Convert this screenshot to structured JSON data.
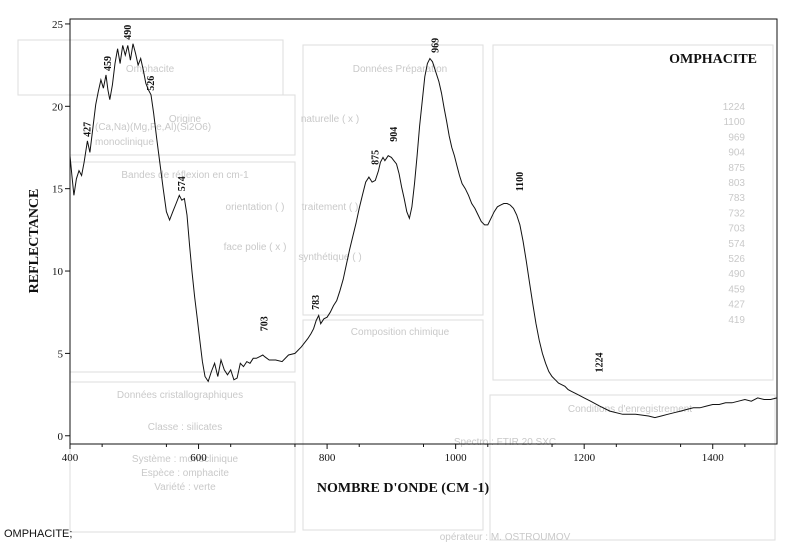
{
  "caption": "OMPHACITE;",
  "chart_data": {
    "type": "line",
    "title": "OMPHACITE",
    "xlabel": "NOMBRE D'ONDE (CM -1)",
    "ylabel": "REFLECTANCE",
    "xlim": [
      400,
      1500
    ],
    "ylim": [
      -0.5,
      25.3
    ],
    "xticks": [
      400,
      600,
      800,
      1000,
      1200,
      1400
    ],
    "yticks": [
      0,
      5,
      10,
      15,
      20,
      25
    ],
    "grid": false,
    "line_color": "#111111",
    "series": [
      {
        "x": [
          400,
          403,
          406,
          410,
          414,
          418,
          422,
          427,
          431,
          436,
          440,
          444,
          448,
          452,
          456,
          459,
          462,
          466,
          470,
          474,
          478,
          482,
          486,
          490,
          494,
          498,
          502,
          506,
          510,
          514,
          518,
          522,
          526,
          530,
          535,
          540,
          545,
          550,
          555,
          560,
          565,
          570,
          574,
          578,
          582,
          586,
          590,
          594,
          598,
          602,
          606,
          610,
          615,
          620,
          625,
          630,
          635,
          640,
          645,
          650,
          655,
          660,
          665,
          670,
          675,
          680,
          685,
          690,
          695,
          700,
          703,
          710,
          720,
          730,
          740,
          750,
          760,
          770,
          775,
          779,
          783,
          787,
          790,
          795,
          800,
          805,
          810,
          815,
          820,
          825,
          830,
          835,
          840,
          845,
          850,
          855,
          860,
          865,
          870,
          875,
          880,
          883,
          887,
          890,
          895,
          900,
          904,
          908,
          912,
          916,
          920,
          924,
          928,
          932,
          936,
          940,
          944,
          948,
          952,
          956,
          960,
          964,
          969,
          974,
          978,
          982,
          986,
          990,
          994,
          998,
          1002,
          1006,
          1010,
          1015,
          1020,
          1025,
          1030,
          1035,
          1040,
          1045,
          1050,
          1055,
          1060,
          1065,
          1070,
          1075,
          1080,
          1085,
          1090,
          1095,
          1100,
          1105,
          1110,
          1115,
          1120,
          1125,
          1130,
          1135,
          1140,
          1145,
          1150,
          1155,
          1160,
          1165,
          1170,
          1175,
          1180,
          1190,
          1200,
          1210,
          1224,
          1240,
          1260,
          1280,
          1300,
          1310,
          1320,
          1330,
          1340,
          1350,
          1360,
          1370,
          1380,
          1390,
          1400,
          1410,
          1420,
          1430,
          1440,
          1450,
          1460,
          1470,
          1480,
          1490,
          1500
        ],
        "y": [
          17.0,
          15.8,
          14.6,
          15.6,
          16.1,
          15.8,
          16.6,
          17.9,
          17.2,
          18.8,
          20.1,
          20.9,
          21.6,
          21.1,
          21.9,
          21.0,
          20.4,
          21.3,
          22.6,
          23.5,
          22.6,
          23.7,
          23.1,
          23.7,
          22.8,
          23.8,
          23.2,
          22.5,
          22.9,
          22.2,
          21.4,
          21.0,
          20.7,
          19.6,
          18.0,
          16.5,
          15.0,
          13.6,
          13.1,
          13.6,
          14.1,
          14.6,
          14.3,
          14.4,
          13.4,
          11.6,
          9.9,
          8.4,
          7.1,
          5.8,
          4.5,
          3.6,
          3.3,
          3.9,
          4.4,
          3.6,
          4.6,
          4.0,
          3.7,
          4.0,
          3.4,
          3.5,
          4.4,
          4.2,
          4.5,
          4.4,
          4.7,
          4.7,
          4.8,
          4.9,
          4.8,
          4.6,
          4.6,
          4.5,
          4.9,
          5.0,
          5.4,
          5.9,
          6.2,
          6.5,
          7.0,
          7.3,
          6.8,
          7.1,
          7.2,
          7.5,
          7.9,
          8.2,
          8.8,
          9.5,
          10.4,
          11.3,
          12.1,
          12.9,
          13.8,
          14.6,
          15.4,
          15.7,
          15.4,
          15.5,
          16.1,
          16.6,
          16.9,
          16.7,
          17.0,
          16.9,
          16.7,
          16.5,
          15.9,
          15.1,
          14.4,
          13.6,
          13.2,
          13.9,
          15.3,
          17.0,
          18.8,
          20.3,
          21.8,
          22.6,
          22.9,
          22.7,
          22.1,
          21.5,
          20.8,
          19.9,
          19.1,
          18.2,
          17.5,
          17.0,
          16.4,
          15.8,
          15.3,
          15.0,
          14.6,
          14.1,
          13.8,
          13.4,
          13.0,
          12.8,
          12.8,
          13.2,
          13.6,
          13.9,
          14.0,
          14.1,
          14.1,
          14.0,
          13.8,
          13.4,
          12.8,
          11.8,
          10.6,
          9.3,
          8.0,
          6.8,
          5.8,
          5.0,
          4.4,
          3.9,
          3.6,
          3.4,
          3.2,
          3.1,
          3.0,
          2.8,
          2.7,
          2.5,
          2.3,
          2.1,
          1.8,
          1.5,
          1.3,
          1.3,
          1.2,
          1.1,
          1.2,
          1.3,
          1.4,
          1.5,
          1.6,
          1.7,
          1.7,
          1.8,
          1.9,
          1.9,
          2.0,
          2.0,
          2.1,
          2.2,
          2.1,
          2.3,
          2.2,
          2.2,
          2.3
        ]
      }
    ],
    "peak_labels": [
      {
        "x": 427,
        "y": 17.9,
        "text": "427"
      },
      {
        "x": 459,
        "y": 21.9,
        "text": "459"
      },
      {
        "x": 490,
        "y": 23.8,
        "text": "490"
      },
      {
        "x": 526,
        "y": 20.7,
        "text": "526"
      },
      {
        "x": 574,
        "y": 14.6,
        "text": "574"
      },
      {
        "x": 703,
        "y": 6.1,
        "text": "703"
      },
      {
        "x": 783,
        "y": 7.4,
        "text": "783"
      },
      {
        "x": 875,
        "y": 16.2,
        "text": "875"
      },
      {
        "x": 904,
        "y": 17.6,
        "text": "904"
      },
      {
        "x": 969,
        "y": 23.0,
        "text": "969"
      },
      {
        "x": 1100,
        "y": 14.6,
        "text": "1100"
      },
      {
        "x": 1224,
        "y": 3.6,
        "text": "1224"
      }
    ]
  },
  "background_sheet": {
    "headers": [
      "Omphacite",
      "Origine",
      "Bandes de réflexion en cm-1",
      "Données Préparation",
      "Composition chimique",
      "Données cristallographiques",
      "Conditions d'enregistrement"
    ],
    "band_list": [
      "1224",
      "1100",
      "969",
      "904",
      "875",
      "803",
      "783",
      "732",
      "703",
      "574",
      "526",
      "490",
      "459",
      "427",
      "419"
    ],
    "misc_lines": [
      "(Ca,Na)(Mg,Fe,Al)(Si2O6)",
      "monoclinique",
      "naturelle ( x )",
      "synthétique ( )",
      "traitement ( )",
      "face polie ( x )",
      "orientation ( )",
      "Classe : silicates",
      "Système : monoclinique",
      "Espèce : omphacite",
      "Variété : verte",
      "Spectro : FTIR 20 SXC",
      "opérateur : M. OSTROUMOV"
    ]
  }
}
